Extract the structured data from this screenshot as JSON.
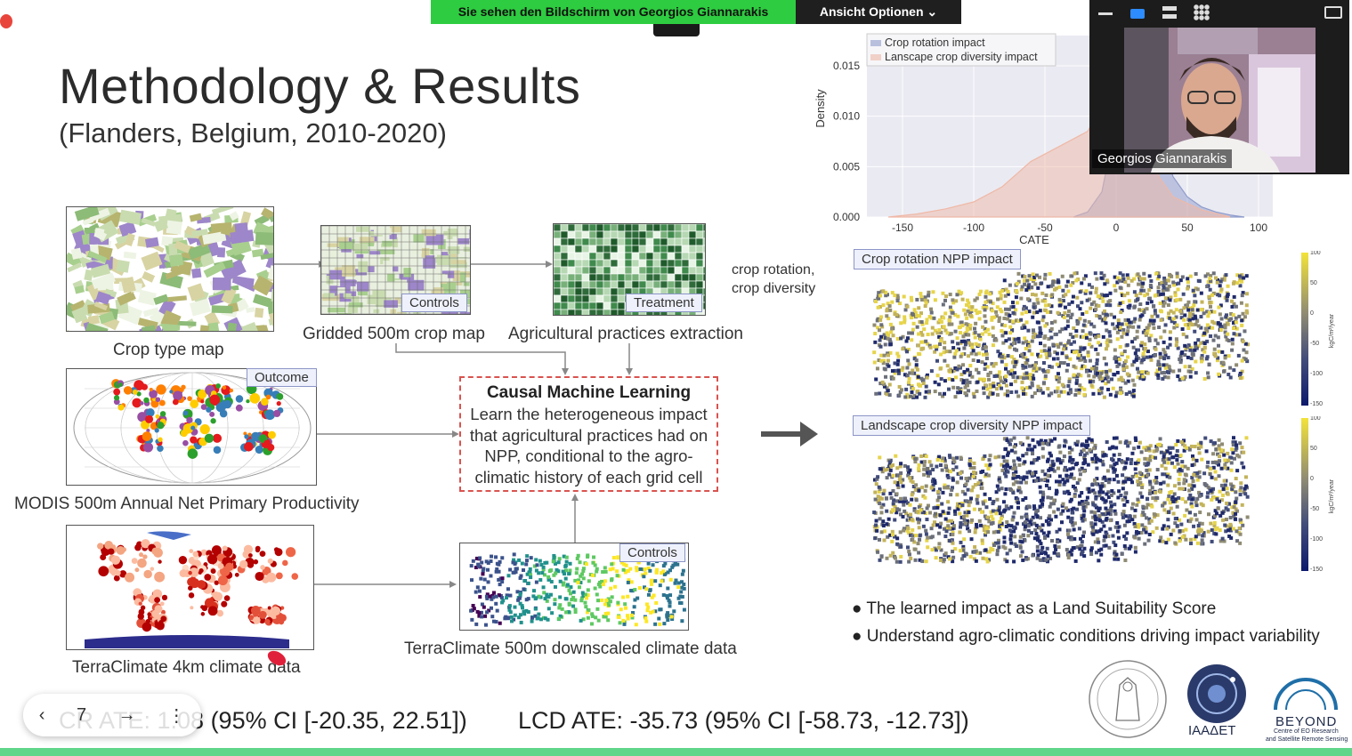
{
  "share_bar": {
    "sharing_text": "Sie sehen den Bildschirm von Georgios Giannarakis",
    "view_options_label": "Ansicht Optionen"
  },
  "slide": {
    "title": "Methodology & Results",
    "subtitle": "(Flanders, Belgium, 2010-2020)"
  },
  "pipeline": {
    "crop_type_caption": "Crop type map",
    "gridded_caption": "Gridded 500m crop map",
    "gridded_tag": "Controls",
    "agri_caption": "Agricultural practices extraction",
    "agri_tag": "Treatment",
    "treatment_note_1": "crop rotation,",
    "treatment_note_2": "crop diversity",
    "modis_caption": "MODIS 500m Annual Net Primary Productivity",
    "modis_tag": "Outcome",
    "terraclimate_caption": "TerraClimate 4km climate data",
    "downscaled_caption": "TerraClimate 500m downscaled climate data",
    "downscaled_tag": "Controls",
    "causal_title": "Causal Machine Learning",
    "causal_line_1": "Learn the heterogeneous impact",
    "causal_line_2": "that agricultural practices had on",
    "causal_line_3": "NPP, conditional to the agro-",
    "causal_line_4": "climatic history of each grid cell"
  },
  "chart_data": {
    "type": "area",
    "xlabel": "CATE",
    "ylabel": "Density",
    "xlim": [
      -175,
      110
    ],
    "ylim": [
      0,
      0.018
    ],
    "x_ticks": [
      "-150",
      "-100",
      "-50",
      "0",
      "50",
      "100"
    ],
    "y_ticks": [
      "0.000",
      "0.005",
      "0.010",
      "0.015"
    ],
    "grid": true,
    "legend_position": "top-left",
    "series": [
      {
        "name": "Crop rotation impact",
        "color": "#8f9ccc",
        "x": [
          -30,
          -20,
          -10,
          -5,
          0,
          5,
          10,
          20,
          30,
          40,
          50,
          60,
          70,
          80,
          90
        ],
        "y": [
          0.0,
          0.0005,
          0.0025,
          0.006,
          0.012,
          0.016,
          0.0165,
          0.013,
          0.008,
          0.004,
          0.002,
          0.001,
          0.0005,
          0.0002,
          0.0
        ]
      },
      {
        "name": "Lanscape crop diversity impact",
        "color": "#efb8a6",
        "x": [
          -160,
          -140,
          -120,
          -100,
          -80,
          -60,
          -40,
          -20,
          -10,
          0,
          10,
          20,
          30,
          40,
          60,
          80
        ],
        "y": [
          0.0,
          0.0003,
          0.0008,
          0.0015,
          0.003,
          0.0055,
          0.007,
          0.0085,
          0.011,
          0.0135,
          0.012,
          0.008,
          0.004,
          0.002,
          0.0007,
          0.0
        ]
      }
    ]
  },
  "maps": {
    "cr_tag": "Crop rotation NPP impact",
    "lcd_tag": "Landscape crop diversity NPP impact",
    "colorbar_unit": "kgC/m²/year",
    "colorbar_ticks": [
      "100",
      "50",
      "0",
      "-50",
      "-100",
      "-150"
    ]
  },
  "bullets": [
    "The learned impact as a Land Suitability Score",
    "Understand agro-climatic conditions driving impact variability"
  ],
  "ate": {
    "cr": "CR ATE: 1.08 (95% CI [-20.35, 22.51])",
    "lcd": "LCD ATE: -35.73 (95% CI [-58.73, -12.73])"
  },
  "slide_nav": {
    "page": "7"
  },
  "video": {
    "speaker_name": "Georgios Giannarakis"
  },
  "logos": {
    "iaaaet": "IAAΔET",
    "beyond": "BEYOND",
    "beyond_sub_1": "Centre of EO Research",
    "beyond_sub_2": "and Satellite Remote Sensing"
  }
}
